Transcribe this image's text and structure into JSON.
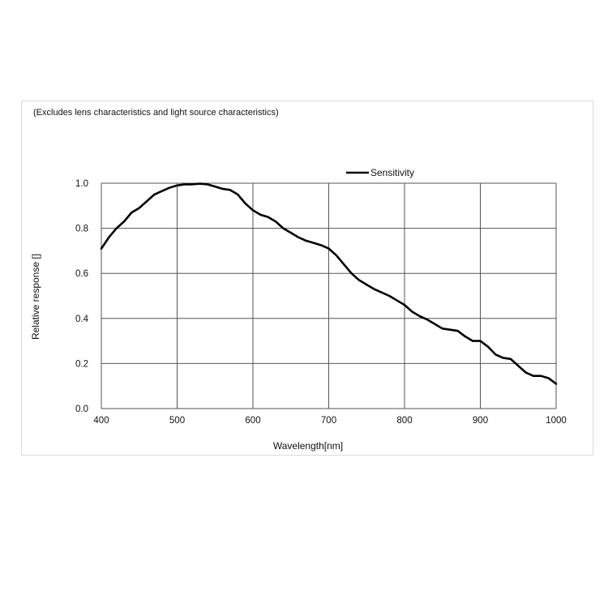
{
  "chart_data": {
    "type": "line",
    "note": "(Excludes lens characteristics and light source characteristics)",
    "xlabel": "Wavelength[nm]",
    "ylabel": "Relative response []",
    "xlim": [
      400,
      1000
    ],
    "ylim": [
      0,
      1.0
    ],
    "x_ticks": [
      "400",
      "500",
      "600",
      "700",
      "800",
      "900",
      "1000"
    ],
    "y_ticks": [
      "0.0",
      "0.2",
      "0.4",
      "0.6",
      "0.8",
      "1.0"
    ],
    "grid": true,
    "legend_position": "top-right",
    "series": [
      {
        "name": "Sensitivity",
        "color": "#000000",
        "x": [
          400,
          410,
          420,
          430,
          440,
          450,
          460,
          470,
          480,
          490,
          500,
          510,
          520,
          530,
          540,
          550,
          560,
          570,
          580,
          590,
          600,
          610,
          620,
          630,
          640,
          650,
          660,
          670,
          680,
          690,
          700,
          710,
          720,
          730,
          740,
          750,
          760,
          770,
          780,
          790,
          800,
          810,
          820,
          830,
          840,
          850,
          860,
          870,
          880,
          890,
          900,
          910,
          920,
          930,
          940,
          950,
          960,
          970,
          980,
          990,
          1000
        ],
        "y": [
          0.71,
          0.76,
          0.8,
          0.83,
          0.87,
          0.89,
          0.92,
          0.95,
          0.965,
          0.98,
          0.99,
          0.995,
          0.995,
          0.998,
          0.995,
          0.985,
          0.975,
          0.97,
          0.95,
          0.91,
          0.88,
          0.86,
          0.85,
          0.83,
          0.8,
          0.78,
          0.76,
          0.745,
          0.735,
          0.725,
          0.71,
          0.68,
          0.64,
          0.6,
          0.57,
          0.55,
          0.53,
          0.515,
          0.5,
          0.48,
          0.46,
          0.43,
          0.41,
          0.395,
          0.375,
          0.355,
          0.35,
          0.345,
          0.32,
          0.3,
          0.3,
          0.275,
          0.24,
          0.225,
          0.22,
          0.19,
          0.16,
          0.145,
          0.145,
          0.135,
          0.11
        ]
      }
    ]
  }
}
